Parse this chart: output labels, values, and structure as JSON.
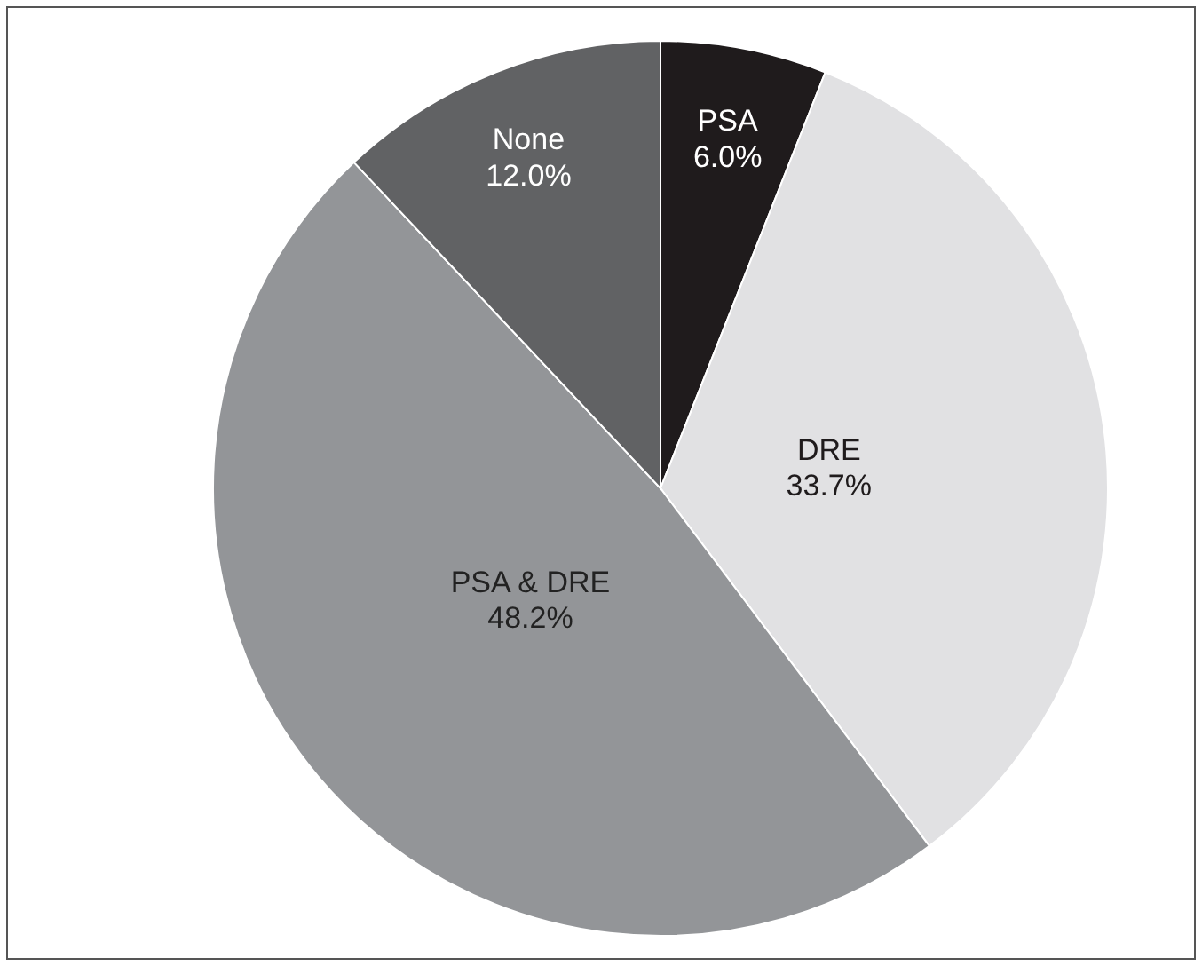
{
  "chart_data": {
    "type": "pie",
    "categories": [
      "PSA",
      "DRE",
      "PSA & DRE",
      "None"
    ],
    "values": [
      6.0,
      33.7,
      48.2,
      12.0
    ],
    "value_labels": [
      "6.0%",
      "33.7%",
      "48.2%",
      "12.0%"
    ],
    "colors": [
      "#1f1b1c",
      "#e1e1e3",
      "#939598",
      "#616264"
    ]
  }
}
